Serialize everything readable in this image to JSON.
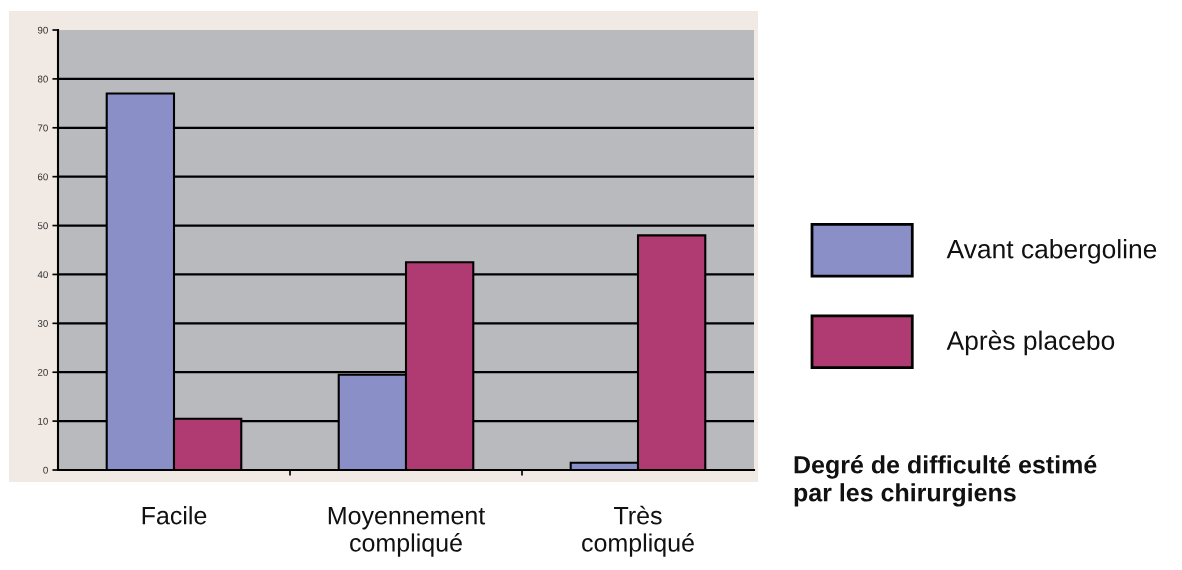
{
  "chart_data": {
    "type": "bar",
    "title": "Degré de difficulté estimé\npar les chirurgiens",
    "categories": [
      "Facile",
      "Moyennement\ncompliqué",
      "Très\ncompliqué"
    ],
    "series": [
      {
        "name": "Avant cabergoline",
        "color": "#8b8fc7",
        "values": [
          77,
          19.5,
          1.5
        ]
      },
      {
        "name": "Après placebo",
        "color": "#b03a72",
        "values": [
          10.5,
          42.5,
          48
        ]
      }
    ],
    "ylim": [
      0,
      90
    ],
    "yticks": [
      0,
      10,
      20,
      30,
      40,
      50,
      60,
      70,
      80,
      90
    ],
    "grid": "y",
    "legend": "right"
  }
}
